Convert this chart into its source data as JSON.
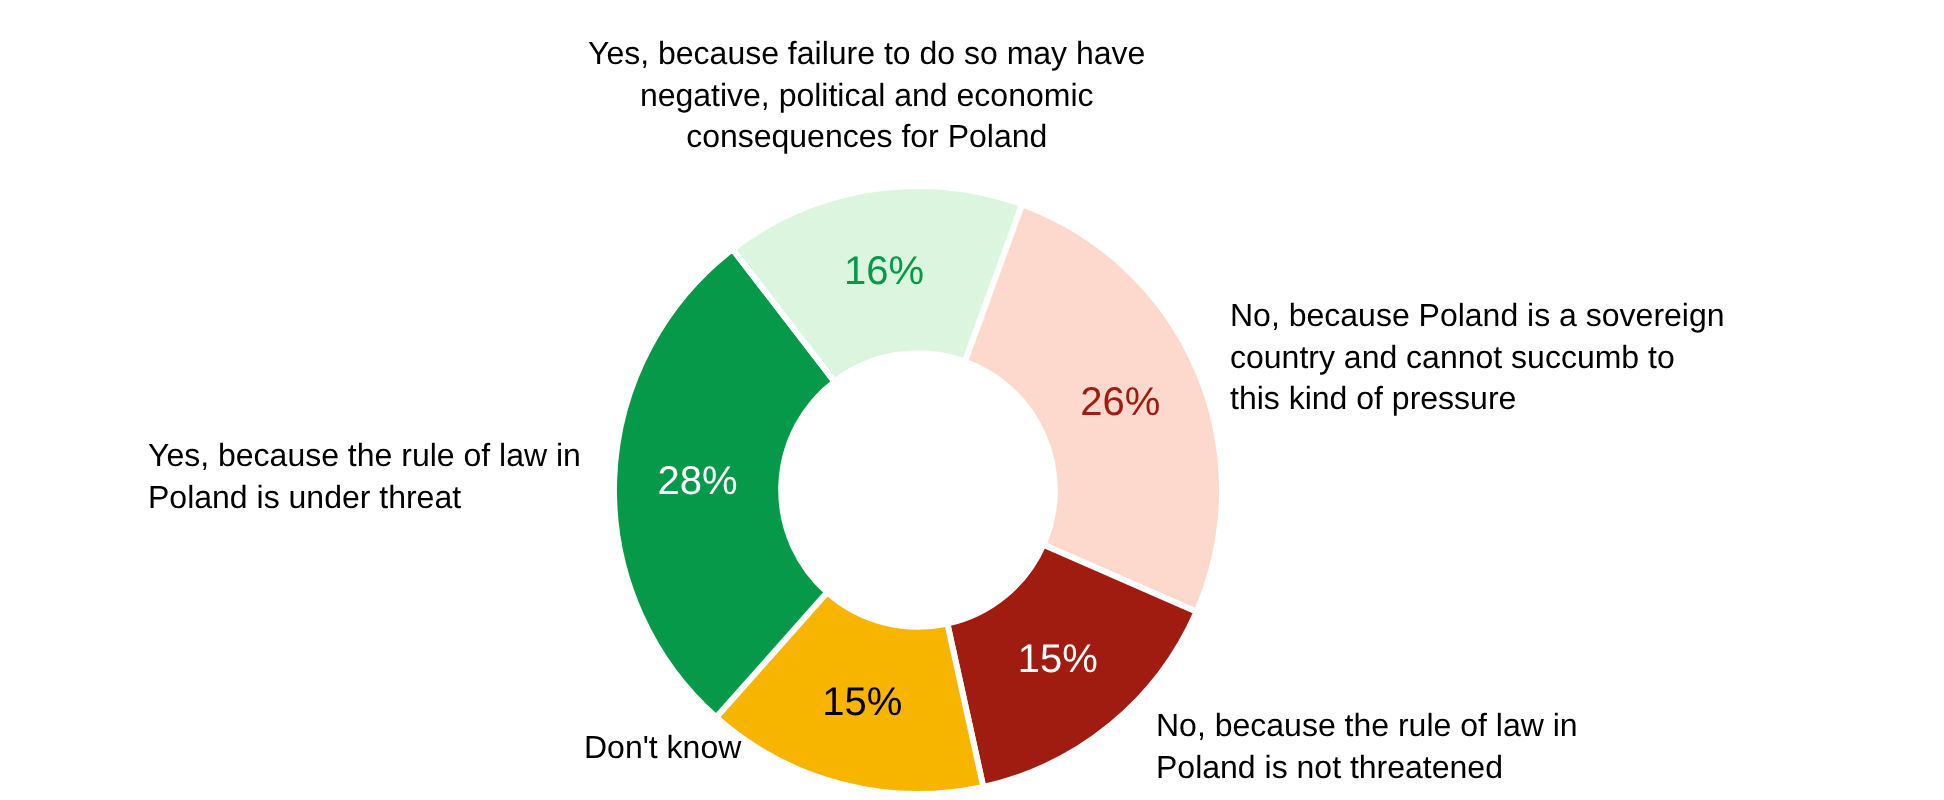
{
  "chart_data": {
    "type": "donut",
    "categories": [
      "No, because Poland is a sovereign country and cannot succumb to this kind of pressure",
      "No, because the rule of law in Poland is not threatened",
      "Don't know",
      "Yes, because the rule of law in Poland is under threat",
      "Yes, because failure to do so may have negative, political and economic consequences for Poland"
    ],
    "values": [
      26,
      15,
      15,
      28,
      16
    ],
    "colors": [
      "#fcd9cc",
      "#a01b10",
      "#f8b500",
      "#06994a",
      "#dcf5df"
    ],
    "value_labels": [
      "26%",
      "15%",
      "15%",
      "28%",
      "16%"
    ],
    "legend": false
  }
}
